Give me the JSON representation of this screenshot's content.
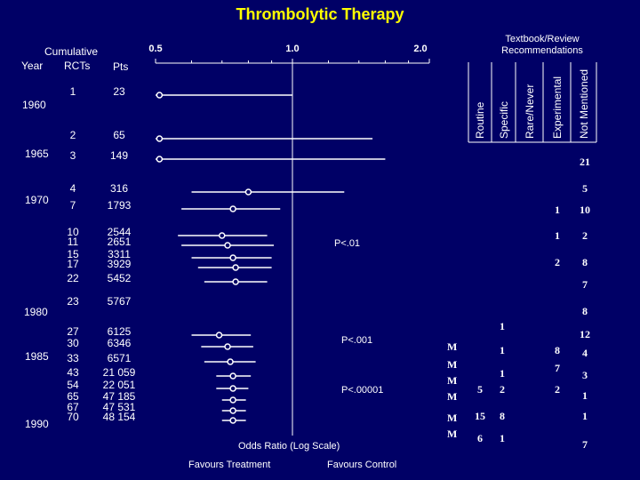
{
  "chart_data": {
    "type": "forest",
    "title": "Thrombolytic Therapy",
    "xlabel": "Odds Ratio (Log Scale)",
    "x_scale": "log",
    "x_ticks": [
      "0.5",
      "1.0",
      "2.0"
    ],
    "x_tick_values": [
      0.5,
      1.0,
      2.0
    ],
    "footer_left": "Favours Treatment",
    "footer_right": "Favours Control",
    "left_headers": {
      "group": "Cumulative",
      "year": "Year",
      "rcts": "RCTs",
      "pts": "Pts"
    },
    "years": [
      "1960",
      "1965",
      "1970",
      "1980",
      "1985",
      "1990"
    ],
    "rows": [
      {
        "rcts": "1",
        "pts": "23",
        "or": 0.51,
        "lo": 0.5,
        "hi": 1.0
      },
      {
        "rcts": "2",
        "pts": "65",
        "or": 0.51,
        "lo": 0.5,
        "hi": 1.5
      },
      {
        "rcts": "3",
        "pts": "149",
        "or": 0.51,
        "lo": 0.5,
        "hi": 1.6
      },
      {
        "rcts": "4",
        "pts": "316",
        "or": 0.8,
        "lo": 0.6,
        "hi": 1.3
      },
      {
        "rcts": "7",
        "pts": "1793",
        "or": 0.74,
        "lo": 0.57,
        "hi": 0.94
      },
      {
        "rcts": "10",
        "pts": "2544",
        "or": 0.7,
        "lo": 0.56,
        "hi": 0.88
      },
      {
        "rcts": "11",
        "pts": "2651",
        "or": 0.72,
        "lo": 0.57,
        "hi": 0.91
      },
      {
        "rcts": "15",
        "pts": "3311",
        "or": 0.74,
        "lo": 0.6,
        "hi": 0.9
      },
      {
        "rcts": "17",
        "pts": "3929",
        "or": 0.75,
        "lo": 0.62,
        "hi": 0.9
      },
      {
        "rcts": "22",
        "pts": "5452",
        "or": 0.75,
        "lo": 0.64,
        "hi": 0.88
      },
      {
        "rcts": "23",
        "pts": "5767",
        "or": null,
        "lo": null,
        "hi": null
      },
      {
        "rcts": "27",
        "pts": "6125",
        "or": 0.69,
        "lo": 0.6,
        "hi": 0.81
      },
      {
        "rcts": "30",
        "pts": "6346",
        "or": 0.72,
        "lo": 0.63,
        "hi": 0.82
      },
      {
        "rcts": "33",
        "pts": "6571",
        "or": 0.73,
        "lo": 0.64,
        "hi": 0.83
      },
      {
        "rcts": "43",
        "pts": "21 059",
        "or": 0.74,
        "lo": 0.68,
        "hi": 0.81
      },
      {
        "rcts": "54",
        "pts": "22 051",
        "or": 0.74,
        "lo": 0.68,
        "hi": 0.8
      },
      {
        "rcts": "65",
        "pts": "47 185",
        "or": 0.74,
        "lo": 0.7,
        "hi": 0.79
      },
      {
        "rcts": "67",
        "pts": "47 531",
        "or": 0.74,
        "lo": 0.7,
        "hi": 0.79
      },
      {
        "rcts": "70",
        "pts": "48 154",
        "or": 0.74,
        "lo": 0.7,
        "hi": 0.79
      }
    ],
    "p_values": [
      "P<.01",
      "P<.001",
      "P<.00001"
    ],
    "recommendations": {
      "header": "Textbook/Review Recommendations",
      "columns": [
        "Routine",
        "Specific",
        "Rare/Never",
        "Experimental",
        "Not Mentioned"
      ],
      "entries": [
        {
          "col": 4,
          "text": "21"
        },
        {
          "col": 4,
          "text": "5"
        },
        {
          "col": 3,
          "text": "1"
        },
        {
          "col": 4,
          "text": "10"
        },
        {
          "col": 3,
          "text": "1"
        },
        {
          "col": 4,
          "text": "2"
        },
        {
          "col": 3,
          "text": "2"
        },
        {
          "col": 4,
          "text": "8"
        },
        {
          "col": 4,
          "text": "7"
        },
        {
          "col": 4,
          "text": "8"
        },
        {
          "col": 1,
          "text": "1"
        },
        {
          "col": 4,
          "text": "12"
        },
        {
          "col": 1,
          "text": "1"
        },
        {
          "col": 3,
          "text": "8"
        },
        {
          "col": 4,
          "text": "4"
        },
        {
          "col": 1,
          "text": "1"
        },
        {
          "col": 3,
          "text": "7"
        },
        {
          "col": 4,
          "text": "3"
        },
        {
          "col": 0,
          "text": "5"
        },
        {
          "col": 1,
          "text": "2"
        },
        {
          "col": 3,
          "text": "2"
        },
        {
          "col": 4,
          "text": "1"
        },
        {
          "col": 0,
          "text": "15"
        },
        {
          "col": 1,
          "text": "8"
        },
        {
          "col": 4,
          "text": "1"
        },
        {
          "col": 0,
          "text": "6"
        },
        {
          "col": 1,
          "text": "1"
        },
        {
          "col": 4,
          "text": "7"
        }
      ],
      "m_labels": [
        "M",
        "M",
        "M",
        "M",
        "M",
        "M"
      ]
    },
    "colors": {
      "background": "#000066",
      "title": "#ffff00",
      "lines": "#ffffff"
    }
  }
}
